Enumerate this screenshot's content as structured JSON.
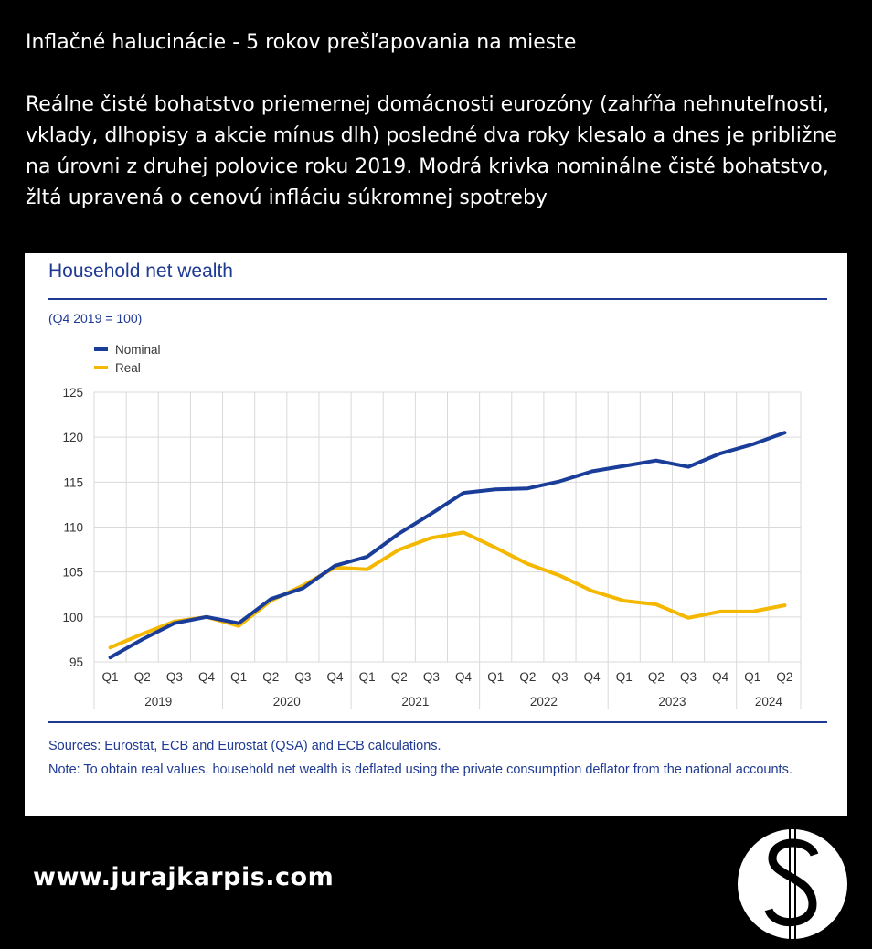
{
  "header": {
    "title": "Inflačné halucinácie - 5 rokov prešľapovania na mieste",
    "description": "Reálne čisté bohatstvo priemernej domácnosti eurozóny (zahŕňa nehnuteľnosti, vklady, dlhopisy a akcie mínus dlh) posledné dva roky klesalo a dnes je približne na úrovni z druhej polovice roku 2019. Modrá krivka nominálne čisté bohatstvo, žltá upravená o cenovú infláciu súkromnej spotreby"
  },
  "footer": {
    "website": "www.jurajkarpis.com",
    "logo_icon": "dollar-circle-logo-icon"
  },
  "colors": {
    "nominal": "#1a3d99",
    "real": "#f5b800",
    "accent": "#1f3a93",
    "grid": "#d9d9d9"
  },
  "chart_data": {
    "type": "line",
    "title": "Household net wealth",
    "subtitle": "(Q4 2019 = 100)",
    "categories": [
      "Q1",
      "Q2",
      "Q3",
      "Q4",
      "Q1",
      "Q2",
      "Q3",
      "Q4",
      "Q1",
      "Q2",
      "Q3",
      "Q4",
      "Q1",
      "Q2",
      "Q3",
      "Q4",
      "Q1",
      "Q2",
      "Q3",
      "Q4",
      "Q1",
      "Q2"
    ],
    "years": [
      {
        "label": "2019",
        "quarters": 4
      },
      {
        "label": "2020",
        "quarters": 4
      },
      {
        "label": "2021",
        "quarters": 4
      },
      {
        "label": "2022",
        "quarters": 4
      },
      {
        "label": "2023",
        "quarters": 4
      },
      {
        "label": "2024",
        "quarters": 2
      }
    ],
    "series": [
      {
        "name": "Nominal",
        "values": [
          95.5,
          97.5,
          99.3,
          100.0,
          99.3,
          102.0,
          103.2,
          105.7,
          106.7,
          109.3,
          111.5,
          113.8,
          114.2,
          114.3,
          115.1,
          116.2,
          116.8,
          117.4,
          116.7,
          118.2,
          119.2,
          120.5
        ]
      },
      {
        "name": "Real",
        "values": [
          96.6,
          98.1,
          99.5,
          100.0,
          99.0,
          101.8,
          103.5,
          105.5,
          105.3,
          107.5,
          108.8,
          109.4,
          107.7,
          105.9,
          104.6,
          102.9,
          101.8,
          101.4,
          99.9,
          100.6,
          100.6,
          101.3
        ]
      }
    ],
    "yticks": [
      95,
      100,
      105,
      110,
      115,
      120,
      125
    ],
    "ylim": [
      95,
      125
    ],
    "grid": true,
    "legend": "top-left",
    "sources": "Sources: Eurostat, ECB and Eurostat (QSA) and ECB calculations.",
    "note": "Note: To obtain real values, household net wealth is deflated using the private consumption deflator from the national accounts."
  }
}
